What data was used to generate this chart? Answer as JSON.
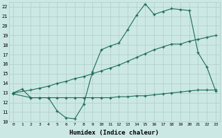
{
  "xlabel": "Humidex (Indice chaleur)",
  "bg_color": "#cce8e4",
  "grid_color": "#b0ccc8",
  "line_color": "#1a6b5a",
  "xlim": [
    -0.5,
    23.5
  ],
  "ylim": [
    10,
    22.5
  ],
  "xticks": [
    0,
    1,
    2,
    3,
    4,
    5,
    6,
    7,
    8,
    9,
    10,
    11,
    12,
    13,
    14,
    15,
    16,
    17,
    18,
    19,
    20,
    21,
    22,
    23
  ],
  "yticks": [
    10,
    11,
    12,
    13,
    14,
    15,
    16,
    17,
    18,
    19,
    20,
    21,
    22
  ],
  "line1_x": [
    0,
    1,
    2,
    3,
    4,
    5,
    6,
    7,
    8,
    9,
    10,
    11,
    12,
    13,
    14,
    15,
    16,
    17,
    18,
    19,
    20,
    21,
    22,
    23
  ],
  "line1_y": [
    13.0,
    13.4,
    12.5,
    12.5,
    12.5,
    11.1,
    10.4,
    10.3,
    11.8,
    15.2,
    17.5,
    17.9,
    18.2,
    19.6,
    21.1,
    22.3,
    21.2,
    21.5,
    21.8,
    21.7,
    21.6,
    17.2,
    15.7,
    13.2
  ],
  "line2_x": [
    0,
    2,
    3,
    4,
    5,
    6,
    7,
    8,
    9,
    10,
    11,
    12,
    13,
    14,
    15,
    16,
    17,
    18,
    19,
    20,
    21,
    22,
    23
  ],
  "line2_y": [
    13.0,
    13.3,
    13.5,
    13.7,
    14.0,
    14.2,
    14.5,
    14.7,
    15.0,
    15.3,
    15.6,
    15.9,
    16.3,
    16.7,
    17.1,
    17.5,
    17.8,
    18.1,
    18.1,
    18.4,
    18.6,
    18.8,
    19.0
  ],
  "line3_x": [
    0,
    2,
    3,
    4,
    5,
    6,
    7,
    8,
    9,
    10,
    11,
    12,
    13,
    14,
    15,
    16,
    17,
    18,
    19,
    20,
    21,
    22,
    23
  ],
  "line3_y": [
    12.9,
    12.5,
    12.5,
    12.5,
    12.5,
    12.5,
    12.5,
    12.5,
    12.5,
    12.5,
    12.5,
    12.6,
    12.6,
    12.7,
    12.7,
    12.8,
    12.9,
    13.0,
    13.1,
    13.2,
    13.3,
    13.3,
    13.3
  ]
}
